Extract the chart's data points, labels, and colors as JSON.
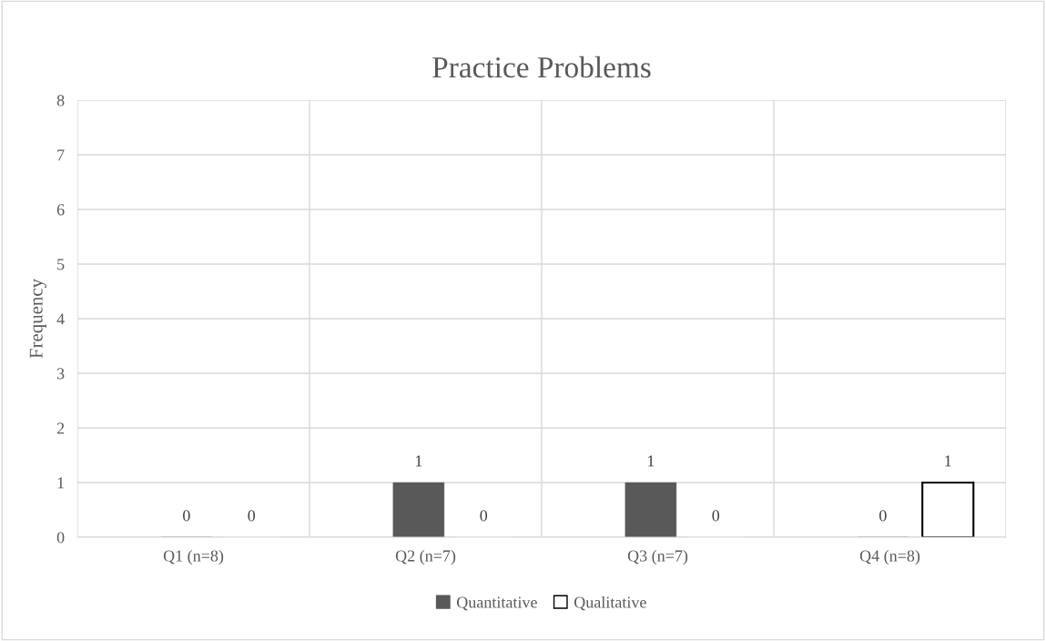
{
  "chart_data": {
    "type": "bar",
    "title": "Practice Problems",
    "ylabel": "Frequency",
    "categories": [
      "Q1 (n=8)",
      "Q2 (n=7)",
      "Q3 (n=7)",
      "Q4 (n=8)"
    ],
    "series": [
      {
        "name": "Quantitative",
        "color": "#595959",
        "values": [
          0,
          1,
          1,
          0
        ]
      },
      {
        "name": "Qualitative",
        "color": "#ffffff",
        "values": [
          0,
          0,
          0,
          1
        ]
      }
    ],
    "ylim": [
      0,
      8
    ],
    "yticks": [
      0,
      1,
      2,
      3,
      4,
      5,
      6,
      7,
      8
    ],
    "grid": true,
    "legend": "bottom",
    "data_labels": true
  }
}
